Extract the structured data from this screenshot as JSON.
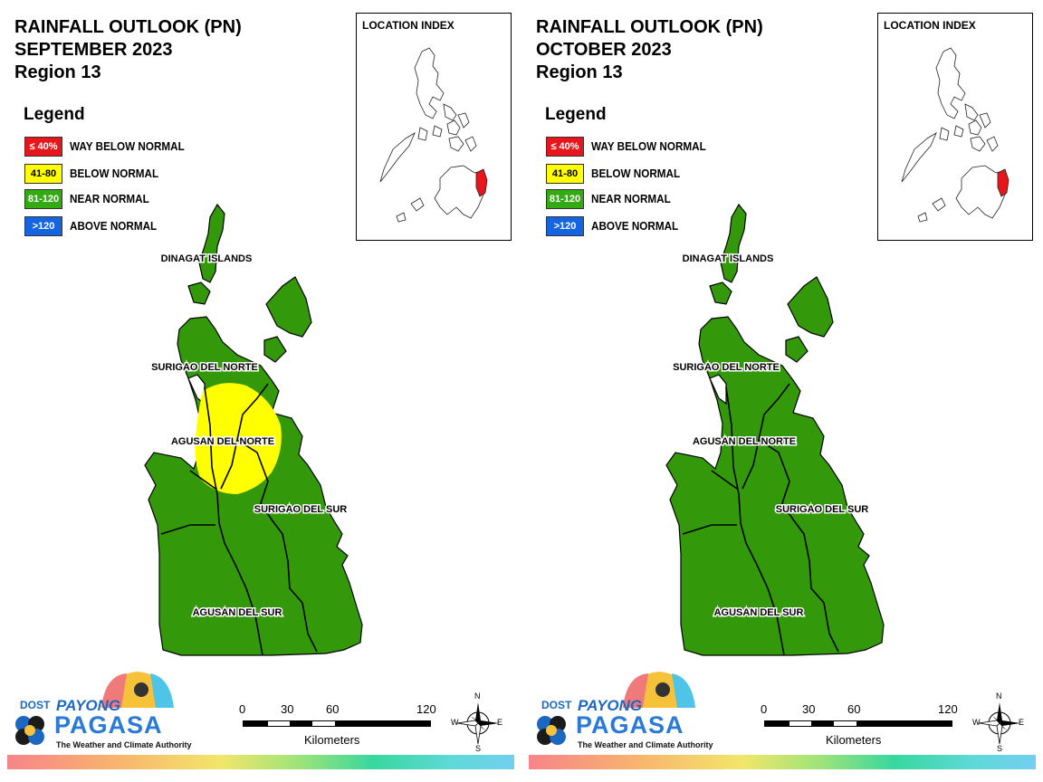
{
  "panels": [
    {
      "title_line1": "RAINFALL OUTLOOK (PN)",
      "title_line2": "SEPTEMBER 2023",
      "title_line3": "Region 13",
      "has_below_normal_zone": true
    },
    {
      "title_line1": "RAINFALL OUTLOOK (PN)",
      "title_line2": "OCTOBER 2023",
      "title_line3": "Region 13",
      "has_below_normal_zone": false
    }
  ],
  "legend": {
    "title": "Legend",
    "items": [
      {
        "range": "≤ 40%",
        "label": "WAY BELOW NORMAL",
        "color": "#e8151b",
        "text_color": "#ffffff"
      },
      {
        "range": "41-80",
        "label": "BELOW NORMAL",
        "color": "#ffff00",
        "text_color": "#000000"
      },
      {
        "range": "81-120",
        "label": "NEAR NORMAL",
        "color": "#33aa11",
        "text_color": "#ffffff"
      },
      {
        "range": ">120",
        "label": "ABOVE NORMAL",
        "color": "#1565e0",
        "text_color": "#ffffff"
      }
    ]
  },
  "location_index": {
    "title": "LOCATION INDEX",
    "highlight_color": "#e8151b"
  },
  "map": {
    "near_normal_color": "#33990a",
    "below_normal_color": "#ffff00",
    "labels": {
      "dinagat": "DINAGAT ISLANDS",
      "surigao_norte": "SURIGAO DEL NORTE",
      "agusan_norte": "AGUSAN DEL NORTE",
      "surigao_sur": "SURIGAO DEL SUR",
      "agusan_sur": "AGUSAN DEL SUR"
    }
  },
  "logo": {
    "dost": "DOST",
    "payong": "PAYONG",
    "pagasa": "PAGASA",
    "tagline": "The Weather and Climate Authority"
  },
  "scale": {
    "ticks": [
      "0",
      "30",
      "60",
      "120"
    ],
    "unit": "Kilometers"
  },
  "compass": {
    "n": "N",
    "s": "S",
    "e": "E",
    "w": "W"
  }
}
